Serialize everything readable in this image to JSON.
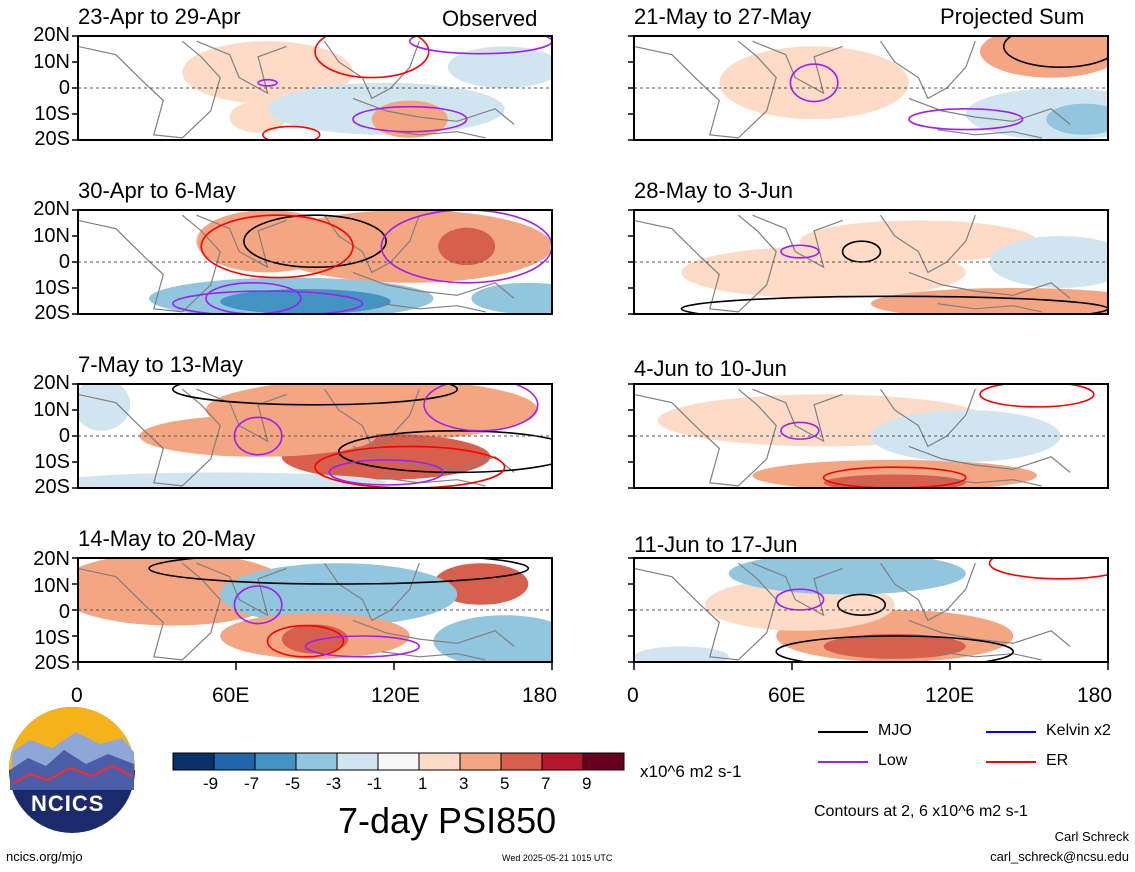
{
  "columns": [
    {
      "label": "Observed",
      "panels": [
        "23-Apr to 29-Apr",
        "30-Apr to 6-May",
        "7-May to 13-May",
        "14-May to 20-May"
      ]
    },
    {
      "label": "Projected Sum",
      "panels": [
        "21-May to 27-May",
        "28-May to 3-Jun",
        "4-Jun to 10-Jun",
        "11-Jun to 17-Jun"
      ]
    }
  ],
  "lat_ticks": [
    "20N",
    "10N",
    "0",
    "10S",
    "20S"
  ],
  "lon_ticks": [
    "0",
    "60E",
    "120E",
    "180"
  ],
  "colorbar": {
    "ticks": [
      "-9",
      "-7",
      "-5",
      "-3",
      "-1",
      "1",
      "3",
      "5",
      "7",
      "9"
    ],
    "colors": [
      "#08306b",
      "#2166ac",
      "#4393c3",
      "#92c5de",
      "#d1e5f0",
      "#f7f7f7",
      "#fddbc7",
      "#f4a582",
      "#d6604d",
      "#b2182b",
      "#67001f"
    ],
    "units": "x10^6 m2 s-1",
    "title": "7-day PSI850"
  },
  "legend": [
    {
      "label": "MJO",
      "color": "#000000"
    },
    {
      "label": "Kelvin x2",
      "color": "#0000ff"
    },
    {
      "label": "Low",
      "color": "#a020f0"
    },
    {
      "label": "ER",
      "color": "#ff0000"
    }
  ],
  "contours_note": "Contours at 2, 6 x10^6 m2 s-1",
  "author": "Carl Schreck",
  "email": "carl_schreck@ncsu.edu",
  "url": "ncics.org/mjo",
  "timestamp": "Wed 2025-05-21 1015 UTC",
  "logo": {
    "text": "NCICS"
  }
}
